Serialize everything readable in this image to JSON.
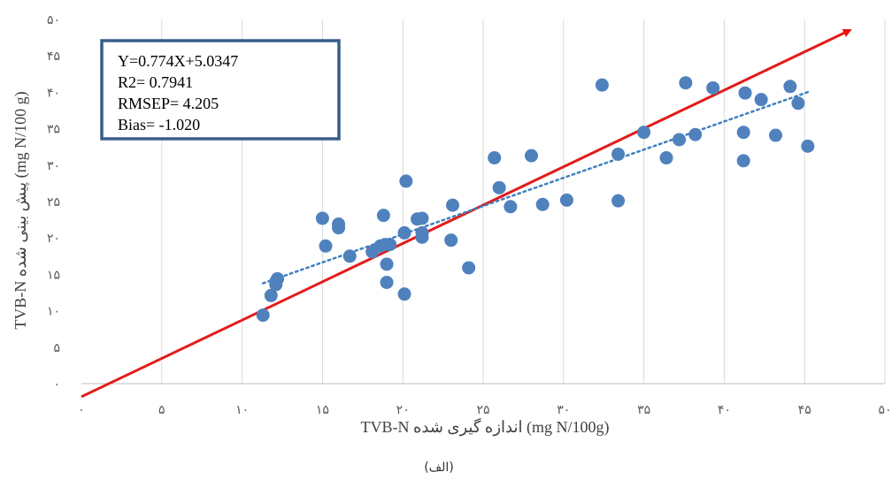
{
  "chart_data": {
    "type": "scatter",
    "xlabel": "TVB-N اندازه گیری شده (mg N/100g)",
    "ylabel": "TVB-N پیش بینی شده (mg N/100 g)",
    "caption": "(الف)",
    "xlim": [
      0,
      50
    ],
    "ylim": [
      0,
      50
    ],
    "x_tick_labels": [
      "۰",
      "۵",
      "۱۰",
      "۱۵",
      "۲۰",
      "۲۵",
      "۳۰",
      "۳۵",
      "۴۰",
      "۴۵",
      "۵۰"
    ],
    "y_tick_labels": [
      "۰",
      "۵",
      "۱۰",
      "۱۵",
      "۲۰",
      "۲۵",
      "۳۰",
      "۳۵",
      "۴۰",
      "۴۵",
      "۵۰"
    ],
    "grid": "vertical",
    "stats_box": {
      "equation": "Y=0.774X+5.0347",
      "r2": "R2= 0.7941",
      "rmsep": "RMSEP= 4.205",
      "bias": "Bias= -1.020"
    },
    "reference_line": {
      "color": "#e31b1b",
      "from": [
        0,
        -1.8
      ],
      "to": [
        47.8,
        48.5
      ]
    },
    "trendline": {
      "slope": 0.774,
      "intercept": 5.0347,
      "x_range": [
        11.3,
        45.3
      ],
      "color": "#3f7fbf"
    },
    "points": [
      [
        11.3,
        9.4
      ],
      [
        11.8,
        12.1
      ],
      [
        12.1,
        13.6
      ],
      [
        12.1,
        14.0
      ],
      [
        12.2,
        14.4
      ],
      [
        15.0,
        22.7
      ],
      [
        15.2,
        18.9
      ],
      [
        16.0,
        21.4
      ],
      [
        16.0,
        21.9
      ],
      [
        16.7,
        17.5
      ],
      [
        18.1,
        18.1
      ],
      [
        18.6,
        18.9
      ],
      [
        18.9,
        19.1
      ],
      [
        19.2,
        19.1
      ],
      [
        18.8,
        23.1
      ],
      [
        19.0,
        16.4
      ],
      [
        19.0,
        13.9
      ],
      [
        20.1,
        20.7
      ],
      [
        20.1,
        12.3
      ],
      [
        20.2,
        27.8
      ],
      [
        20.9,
        22.6
      ],
      [
        21.2,
        22.7
      ],
      [
        21.2,
        20.7
      ],
      [
        21.2,
        20.1
      ],
      [
        23.1,
        24.5
      ],
      [
        23.0,
        19.7
      ],
      [
        24.1,
        15.9
      ],
      [
        25.7,
        31.0
      ],
      [
        26.0,
        26.9
      ],
      [
        26.7,
        24.3
      ],
      [
        28.0,
        31.3
      ],
      [
        28.7,
        24.6
      ],
      [
        30.2,
        25.2
      ],
      [
        32.4,
        41.0
      ],
      [
        33.4,
        25.1
      ],
      [
        33.4,
        31.5
      ],
      [
        35.0,
        34.5
      ],
      [
        36.4,
        31.0
      ],
      [
        37.2,
        33.5
      ],
      [
        37.6,
        41.3
      ],
      [
        38.2,
        34.2
      ],
      [
        39.3,
        40.6
      ],
      [
        41.2,
        34.5
      ],
      [
        41.3,
        39.9
      ],
      [
        41.2,
        30.6
      ],
      [
        42.3,
        39.0
      ],
      [
        43.2,
        34.1
      ],
      [
        44.1,
        40.8
      ],
      [
        44.6,
        38.5
      ],
      [
        45.2,
        32.6
      ]
    ],
    "point_color": "#4f81bd"
  }
}
